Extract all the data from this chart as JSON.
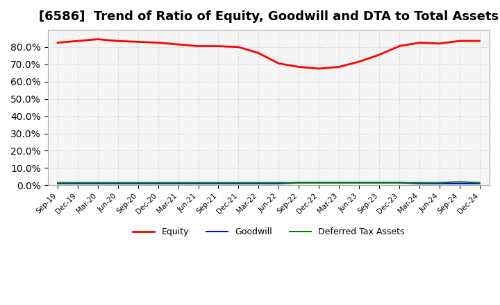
{
  "title": "[6586]  Trend of Ratio of Equity, Goodwill and DTA to Total Assets",
  "x_labels": [
    "Sep-19",
    "Dec-19",
    "Mar-20",
    "Jun-20",
    "Sep-20",
    "Dec-20",
    "Mar-21",
    "Jun-21",
    "Sep-21",
    "Dec-21",
    "Mar-22",
    "Jun-22",
    "Sep-22",
    "Dec-22",
    "Mar-23",
    "Jun-23",
    "Sep-23",
    "Dec-23",
    "Mar-24",
    "Jun-24",
    "Sep-24",
    "Dec-24"
  ],
  "equity": [
    82.5,
    83.5,
    84.5,
    83.5,
    83.0,
    82.5,
    81.5,
    80.5,
    80.5,
    80.0,
    76.5,
    70.5,
    68.5,
    67.5,
    68.5,
    71.5,
    75.5,
    80.5,
    82.5,
    82.0,
    83.5,
    83.5
  ],
  "goodwill": [
    1.0,
    1.0,
    1.0,
    1.0,
    1.0,
    1.0,
    1.0,
    1.0,
    1.0,
    1.0,
    1.0,
    1.0,
    1.5,
    1.5,
    1.5,
    1.5,
    1.5,
    1.5,
    1.0,
    1.0,
    1.0,
    1.0
  ],
  "dta": [
    1.5,
    1.5,
    1.5,
    1.5,
    1.5,
    1.5,
    1.5,
    1.5,
    1.5,
    1.5,
    1.5,
    1.5,
    1.5,
    1.5,
    1.5,
    1.5,
    1.5,
    1.5,
    1.5,
    1.5,
    2.0,
    1.5
  ],
  "equity_color": "#ff0000",
  "goodwill_color": "#0000ff",
  "dta_color": "#008000",
  "ylim": [
    0,
    90
  ],
  "yticks": [
    0,
    10,
    20,
    30,
    40,
    50,
    60,
    70,
    80
  ],
  "grid_color": "#cccccc",
  "bg_color": "#ffffff",
  "plot_bg_color": "#f5f5f5",
  "title_fontsize": 13,
  "legend_labels": [
    "Equity",
    "Goodwill",
    "Deferred Tax Assets"
  ]
}
